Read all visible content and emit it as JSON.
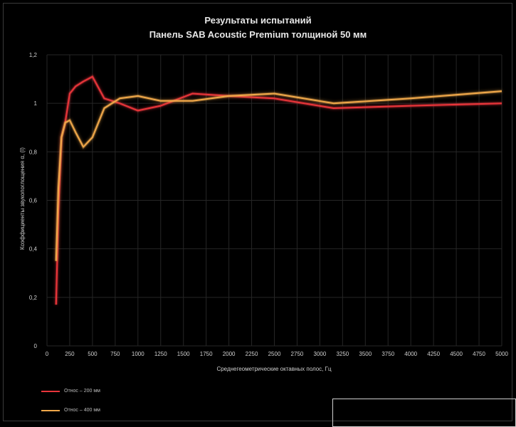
{
  "chart_data": {
    "type": "line",
    "title": "Результаты испытаний",
    "subtitle": "Панель SAB Acoustic Premium толщиной 50 мм",
    "xlabel": "Среднегеометрические октавных полос, Гц",
    "ylabel": "Коэффициенты звукопоглощения α, (I)",
    "xlim": [
      0,
      5000
    ],
    "ylim": [
      0,
      1.2
    ],
    "xticks": [
      "0",
      "250",
      "500",
      "750",
      "1000",
      "1250",
      "1500",
      "1750",
      "2000",
      "2250",
      "2500",
      "2750",
      "3000",
      "3250",
      "3500",
      "3750",
      "4000",
      "4250",
      "4500",
      "4750",
      "5000"
    ],
    "yticks": [
      "0",
      "0,2",
      "0,4",
      "0,6",
      "0,8",
      "1",
      "1,2"
    ],
    "grid": true,
    "legend_position": "bottom-left",
    "series": [
      {
        "name": "Относ – 200 мм",
        "color": "#e8353a",
        "x": [
          100,
          125,
          160,
          200,
          250,
          315,
          400,
          500,
          630,
          800,
          1000,
          1250,
          1600,
          2000,
          2500,
          3150,
          4000,
          5000
        ],
        "y": [
          0.17,
          0.55,
          0.86,
          0.92,
          1.04,
          1.07,
          1.09,
          1.11,
          1.02,
          1.0,
          0.97,
          0.99,
          1.04,
          1.03,
          1.02,
          0.98,
          0.99,
          1.0
        ]
      },
      {
        "name": "Относ – 400 мм",
        "color": "#f0a84a",
        "x": [
          100,
          125,
          160,
          200,
          250,
          315,
          400,
          500,
          630,
          800,
          1000,
          1250,
          1600,
          2000,
          2500,
          3150,
          4000,
          5000
        ],
        "y": [
          0.35,
          0.65,
          0.86,
          0.92,
          0.93,
          0.88,
          0.82,
          0.86,
          0.98,
          1.02,
          1.03,
          1.01,
          1.01,
          1.03,
          1.04,
          1.0,
          1.02,
          1.05
        ]
      }
    ]
  }
}
